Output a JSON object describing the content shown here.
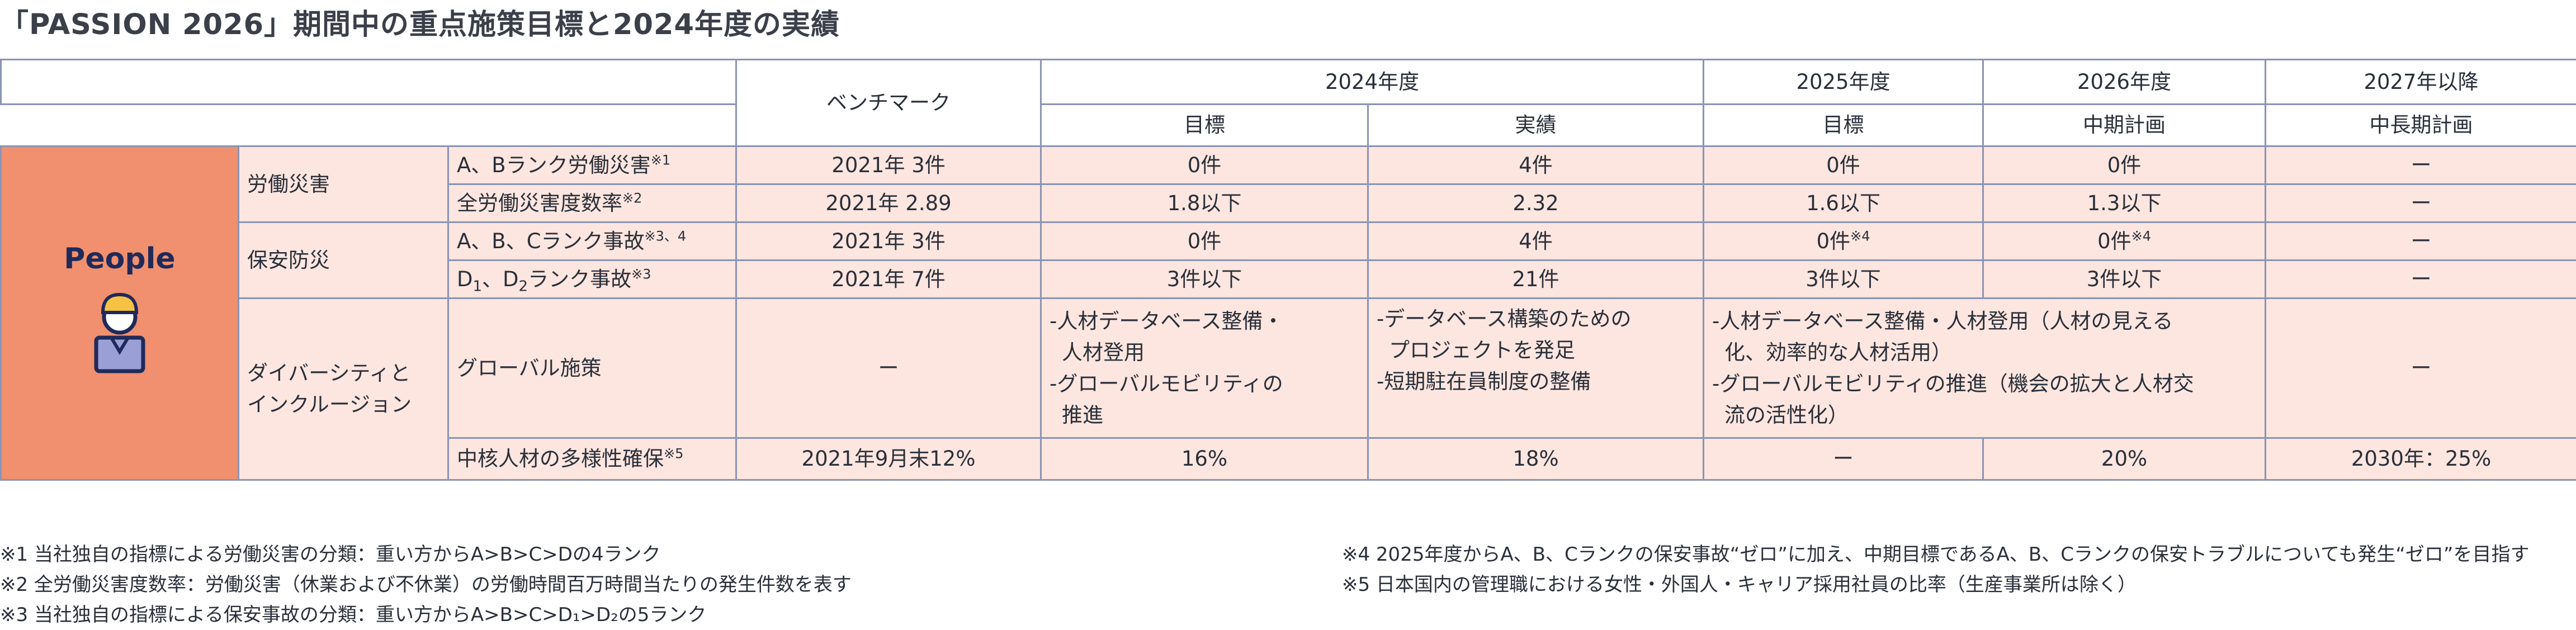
{
  "title": "「PASSION 2026」期間中の重点施策目標と2024年度の実績",
  "header": {
    "benchmark": "ベンチマーク",
    "y2024": "2024年度",
    "y2025": "2025年度",
    "y2026": "2026年度",
    "y2027": "2027年以降",
    "target": "目標",
    "actual": "実績",
    "target2025": "目標",
    "midplan": "中期計画",
    "longplan": "中長期計画"
  },
  "people_label": "People",
  "colors": {
    "people_bg": "#f0906f",
    "row_pink": "#fce6df",
    "border": "#8a94b4",
    "title": "#3a3f4a"
  },
  "rows": {
    "labor": {
      "category": "労働災害",
      "r1": {
        "item": "A、Bランク労働災害",
        "note": "※1",
        "bench": "2021年 3件",
        "t2024": "0件",
        "a2024": "4件",
        "t2025": "0件",
        "m2026": "0件",
        "l2027": "ー"
      },
      "r2": {
        "item": "全労働災害度数率",
        "note": "※2",
        "bench": "2021年 2.89",
        "t2024": "1.8以下",
        "a2024": "2.32",
        "t2025": "1.6以下",
        "m2026": "1.3以下",
        "l2027": "ー"
      }
    },
    "safety": {
      "category": "保安防災",
      "r1": {
        "item": "A、B、Cランク事故",
        "note": "※3、4",
        "bench": "2021年 3件",
        "t2024": "0件",
        "a2024": "4件",
        "t2025": "0件",
        "t2025_note": "※4",
        "m2026": "0件",
        "m2026_note": "※4",
        "l2027": "ー"
      },
      "r2": {
        "item_a": "D",
        "sub_a": "1",
        "item_sep": "、D",
        "sub_b": "2",
        "item_tail": "ランク事故",
        "note": "※3",
        "bench": "2021年 7件",
        "t2024": "3件以下",
        "a2024": "21件",
        "t2025": "3件以下",
        "m2026": "3件以下",
        "l2027": "ー"
      }
    },
    "diversity": {
      "category_line1": "ダイバーシティと",
      "category_line2": "インクルージョン",
      "r1": {
        "item": "グローバル施策",
        "bench": "ー",
        "t2024_lines": [
          "-人材データベース整備・",
          "人材登用",
          "-グローバルモビリティの",
          "推進"
        ],
        "a2024_lines": [
          "-データベース構築のための",
          "プロジェクトを発足",
          "-短期駐在員制度の整備"
        ],
        "t2025_lines": [
          "-人材データベース整備・人材登用（人材の見える",
          "化、効率的な人材活用）",
          "-グローバルモビリティの推進（機会の拡大と人材交",
          "流の活性化）"
        ],
        "l2027": "ー"
      },
      "r2": {
        "item": "中核人材の多様性確保",
        "note": "※5",
        "bench": "2021年9月末12%",
        "t2024": "16%",
        "a2024": "18%",
        "t2025": "ー",
        "m2026": "20%",
        "l2027": "2030年：25%"
      }
    }
  },
  "notes_left": [
    "※1 当社独自の指標による労働災害の分類：重い方からA>B>C>Dの4ランク",
    "※2 全労働災害度数率：労働災害（休業および不休業）の労働時間百万時間当たりの発生件数を表す",
    "※3 当社独自の指標による保安事故の分類：重い方からA>B>C>D₁>D₂の5ランク"
  ],
  "notes_right": [
    "※4 2025年度からA、B、Cランクの保安事故“ゼロ”に加え、中期目標であるA、B、Cランクの保安トラブルについても発生“ゼロ”を目指す",
    "※5 日本国内の管理職における女性・外国人・キャリア採用社員の比率（生産事業所は除く）"
  ]
}
